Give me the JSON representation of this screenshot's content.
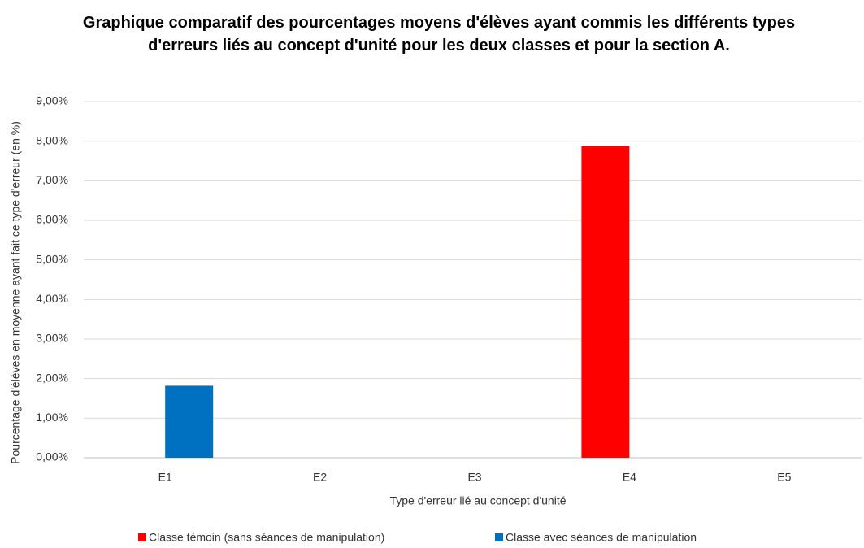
{
  "chart_data": {
    "type": "bar",
    "title": "Graphique comparatif des pourcentages moyens d'élèves ayant commis les différents types d'erreurs liés au concept d'unité pour les deux classes et pour la section A.",
    "x_label": "Type d'erreur lié au concept d'unité",
    "y_label": "Pourcentage d'élèves en moyenne ayant fait ce type d'erreur (en %)",
    "categories": [
      "E1",
      "E2",
      "E3",
      "E4",
      "E5"
    ],
    "series": [
      {
        "name": "Classe témoin (sans séances de manipulation)",
        "color": "#ff0000",
        "values": [
          0,
          0,
          0,
          7.87,
          0
        ]
      },
      {
        "name": "Classe avec séances de manipulation",
        "color": "#0070c0",
        "values": [
          1.82,
          0,
          0,
          0,
          0
        ]
      }
    ],
    "ylim": [
      0,
      9
    ],
    "yticks": [
      {
        "value": 0,
        "label": "0,00%"
      },
      {
        "value": 1,
        "label": "1,00%"
      },
      {
        "value": 2,
        "label": "2,00%"
      },
      {
        "value": 3,
        "label": "3,00%"
      },
      {
        "value": 4,
        "label": "4,00%"
      },
      {
        "value": 5,
        "label": "5,00%"
      },
      {
        "value": 6,
        "label": "6,00%"
      },
      {
        "value": 7,
        "label": "7,00%"
      },
      {
        "value": 8,
        "label": "8,00%"
      },
      {
        "value": 9,
        "label": "9,00%"
      }
    ],
    "grid": true,
    "legend": "bottom"
  }
}
